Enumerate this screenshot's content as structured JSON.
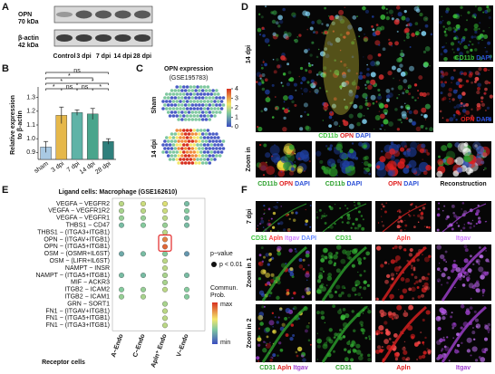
{
  "panel_labels": [
    "A",
    "B",
    "C",
    "D",
    "E",
    "F"
  ],
  "panel_a": {
    "proteins": [
      {
        "name": "OPN",
        "size": "70 kDa"
      },
      {
        "name": "β-actin",
        "size": "42 kDa"
      }
    ],
    "lanes": [
      "Control",
      "3 dpi",
      "7 dpi",
      "14 dpi",
      "28 dpi"
    ]
  },
  "chart_data": [
    {
      "type": "bar",
      "y_label": [
        "Relative expression",
        "to β-actin"
      ],
      "categories": [
        "sham",
        "3 dpi",
        "7 dpi",
        "14 dpi",
        "28 dpi"
      ],
      "values": [
        0.94,
        1.17,
        1.19,
        1.18,
        0.98
      ],
      "errors": [
        0.04,
        0.06,
        0.02,
        0.04,
        0.02
      ],
      "colors": [
        "#a9c9e3",
        "#e6b84a",
        "#5fb3a7",
        "#4aa58c",
        "#2f7f7c"
      ],
      "ylim": [
        0.85,
        1.35
      ],
      "yticks": [
        0.9,
        {
          "value": 1,
          "label": "1.0"
        },
        1.1,
        1.2,
        1.3
      ],
      "significance": [
        "ns",
        "*",
        "*",
        "*",
        "*",
        "ns",
        "ns",
        "*"
      ]
    },
    {
      "type": "dot",
      "title": "Ligand cells: Macrophage (GSE162610)",
      "categories": [
        "A−Endo",
        "C−Endo",
        "Apln⁺ Endo",
        "V−Endo"
      ],
      "category_colors": [
        "#111111",
        "#111111",
        "#d62728",
        "#111111"
      ],
      "x_label": "Receptor cells",
      "series": [
        {
          "name": "VEGFA − VEGFR2",
          "color": "#111111",
          "values": [
            0.5,
            0.55,
            0.6,
            0.3
          ]
        },
        {
          "name": "VEGFA − VEGFR1R2",
          "color": "#111111",
          "values": [
            0.45,
            0.5,
            0.55,
            0.35
          ]
        },
        {
          "name": "VEGFA − VEGFR1",
          "color": "#111111",
          "values": [
            0.4,
            0.4,
            0.5,
            0.3
          ]
        },
        {
          "name": "THBS1 − CD47",
          "color": "#111111",
          "values": [
            0.3,
            0.35,
            0.4,
            0.3
          ]
        },
        {
          "name": "THBS1 − (ITGA3+ITGB1)",
          "color": "#111111",
          "values": [
            null,
            null,
            0.5,
            null
          ]
        },
        {
          "name": "OPN − (ITGAV+ITGB1)",
          "color": "#d62728",
          "values": [
            null,
            null,
            0.85,
            null
          ]
        },
        {
          "name": "OPN − (ITGA5+ITGB1)",
          "color": "#d62728",
          "values": [
            null,
            null,
            0.9,
            null
          ]
        },
        {
          "name": "OSM − (OSMR+IL6ST)",
          "color": "#111111",
          "values": [
            0.25,
            0.3,
            0.35,
            0.2
          ]
        },
        {
          "name": "OSM − (LIFR+IL6ST)",
          "color": "#111111",
          "values": [
            null,
            null,
            0.5,
            null
          ]
        },
        {
          "name": "NAMPT − INSR",
          "color": "#111111",
          "values": [
            null,
            null,
            0.5,
            null
          ]
        },
        {
          "name": "NAMPT − (ITGA5+ITGB1)",
          "color": "#111111",
          "values": [
            0.3,
            0.3,
            0.45,
            0.3
          ]
        },
        {
          "name": "MIF − ACKR3",
          "color": "#111111",
          "values": [
            null,
            null,
            0.45,
            null
          ]
        },
        {
          "name": "ITGB2 − ICAM2",
          "color": "#111111",
          "values": [
            0.35,
            0.4,
            0.5,
            0.35
          ]
        },
        {
          "name": "ITGB2 − ICAM1",
          "color": "#111111",
          "values": [
            0.4,
            0.45,
            null,
            0.35
          ]
        },
        {
          "name": "GRN − SORT1",
          "color": "#111111",
          "values": [
            null,
            null,
            0.45,
            null
          ]
        },
        {
          "name": "FN1 − (ITGAV+ITGB1)",
          "color": "#111111",
          "values": [
            null,
            null,
            0.5,
            null
          ]
        },
        {
          "name": "FN1 − (ITGA5+ITGB1)",
          "color": "#111111",
          "values": [
            null,
            null,
            0.5,
            null
          ]
        },
        {
          "name": "FN1 − (ITGA3+ITGB1)",
          "color": "#111111",
          "values": [
            null,
            null,
            0.5,
            null
          ]
        }
      ],
      "highlight_color": "#e32626",
      "size_legend_title": "p−value",
      "size_legend_label": "p < 0.01",
      "color_legend_title": [
        "Commun.",
        "Prob."
      ],
      "color_legend_labels": [
        "max",
        "min"
      ]
    }
  ],
  "panel_c": {
    "title": "OPN expression",
    "subtitle": "(GSE195783)",
    "rows": [
      "Sham",
      "14 dpi"
    ],
    "colorbar_ticks": [
      0,
      1,
      2,
      3,
      4
    ]
  },
  "panel_d": {
    "time": "14 dpi",
    "zoom_label": "Zoom in",
    "main_caption": [
      {
        "text": "CD11b",
        "color": "#3cc43c"
      },
      {
        "text": "OPN",
        "color": "#e02020"
      },
      {
        "text": "DAPI",
        "color": "#2a4fd6"
      }
    ],
    "side_captions": [
      [
        {
          "text": "CD11b",
          "color": "#3cc43c"
        },
        {
          "text": "DAPI",
          "color": "#2a4fd6"
        }
      ],
      [
        {
          "text": "OPN",
          "color": "#e02020"
        },
        {
          "text": "DAPI",
          "color": "#2a4fd6"
        }
      ]
    ],
    "zoom_captions": [
      [
        {
          "text": "CD11b",
          "color": "#2ca02c"
        },
        {
          "text": "OPN",
          "color": "#e02020"
        },
        {
          "text": "DAPI",
          "color": "#2a4fd6"
        }
      ],
      [
        {
          "text": "CD11b",
          "color": "#2ca02c"
        },
        {
          "text": "DAPI",
          "color": "#2a4fd6"
        }
      ],
      [
        {
          "text": "OPN",
          "color": "#e02020"
        },
        {
          "text": "DAPI",
          "color": "#2a4fd6"
        }
      ],
      [
        {
          "text": "Reconstruction",
          "color": "#111111"
        }
      ]
    ]
  },
  "panel_f": {
    "row_labels": [
      "7 dpi",
      "Zoom in 1",
      "Zoom in 2"
    ],
    "headers": [
      [
        {
          "text": "CD31",
          "color": "#3cc43c"
        },
        {
          "text": "Apln",
          "color": "#ff4040"
        },
        {
          "text": "Itgav",
          "color": "#d080ff"
        },
        {
          "text": "DAPI",
          "color": "#6a8cff"
        }
      ],
      [
        {
          "text": "CD31",
          "color": "#3cc43c"
        }
      ],
      [
        {
          "text": "Apln",
          "color": "#ff4040"
        }
      ],
      [
        {
          "text": "Itgav",
          "color": "#d080ff"
        }
      ]
    ],
    "footers": [
      [
        {
          "text": "CD31",
          "color": "#2ca02c"
        },
        {
          "text": "Apln",
          "color": "#e02020"
        },
        {
          "text": "Itgav",
          "color": "#a040d0"
        }
      ],
      [
        {
          "text": "CD31",
          "color": "#2ca02c"
        }
      ],
      [
        {
          "text": "Apln",
          "color": "#e02020"
        }
      ],
      [
        {
          "text": "Itgav",
          "color": "#a040d0"
        }
      ]
    ]
  }
}
